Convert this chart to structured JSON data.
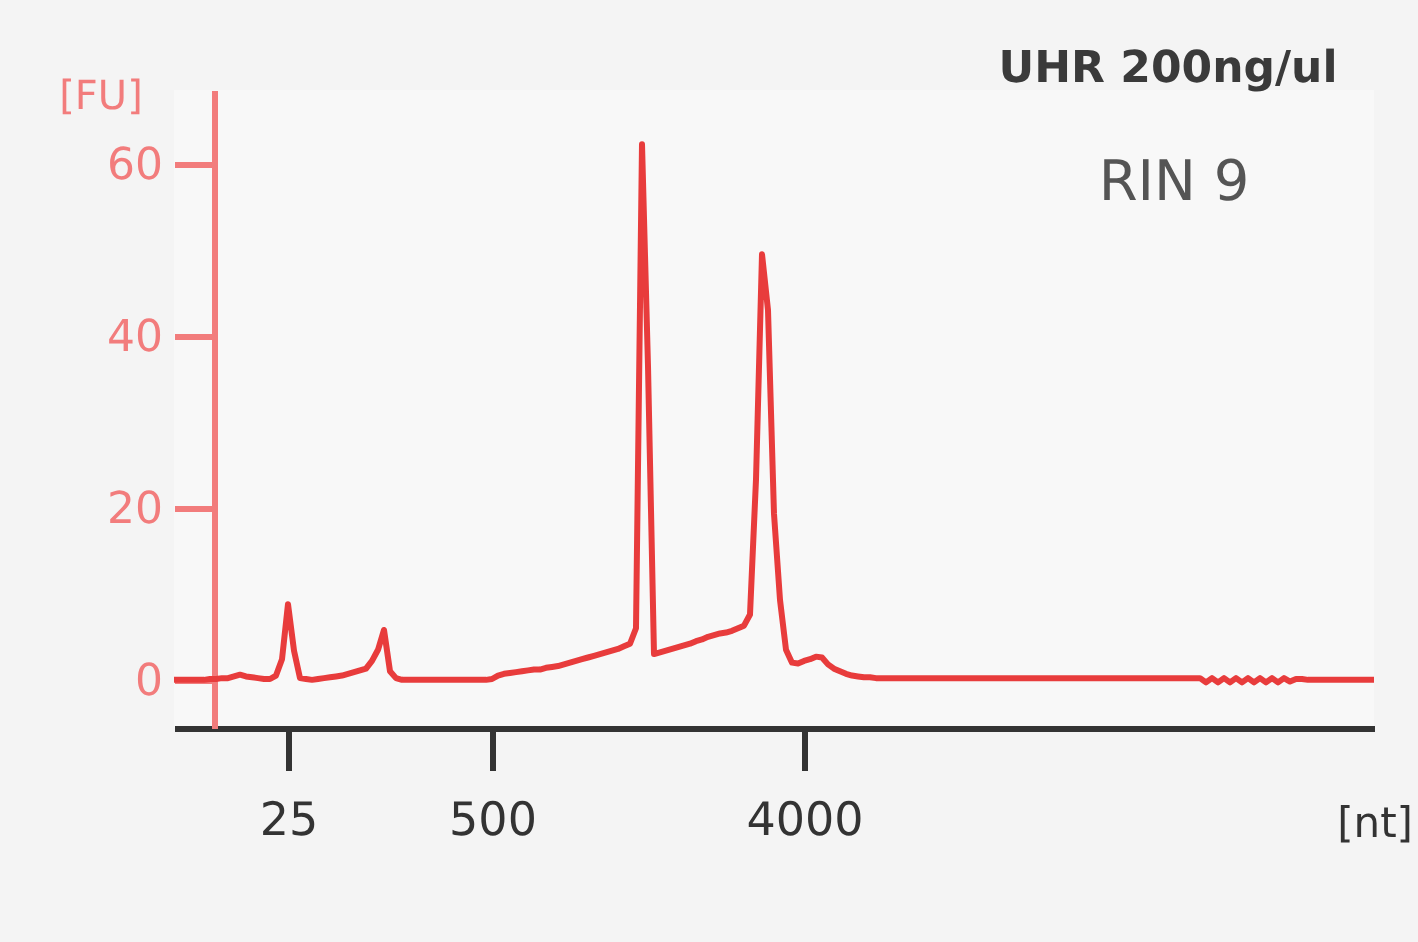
{
  "chart_data": {
    "type": "line",
    "xlabel": "[nt]",
    "ylabel": "[FU]",
    "annotations": [
      "UHR 200ng/ul",
      "RIN 9"
    ],
    "categories": [
      null,
      null,
      null,
      null,
      null,
      null,
      null,
      null,
      null,
      null,
      null,
      null,
      null,
      null,
      null,
      null,
      null,
      null,
      null,
      "25",
      null,
      null,
      null,
      null,
      null,
      null,
      null,
      null,
      null,
      null,
      null,
      null,
      null,
      null,
      null,
      null,
      null,
      null,
      null,
      null,
      null,
      null,
      null,
      null,
      null,
      null,
      null,
      null,
      null,
      null,
      null,
      null,
      null,
      "500",
      null,
      null,
      null,
      null,
      null,
      null,
      null,
      null,
      null,
      null,
      null,
      null,
      null,
      null,
      null,
      null,
      null,
      null,
      null,
      null,
      null,
      null,
      null,
      null,
      null,
      null,
      null,
      null,
      null,
      null,
      null,
      null,
      null,
      null,
      null,
      null,
      null,
      null,
      null,
      null,
      null,
      null,
      null,
      null,
      null,
      null,
      null,
      null,
      null,
      null,
      null,
      "4000",
      null,
      null,
      null,
      null,
      null,
      null,
      null,
      null,
      null,
      null,
      null,
      null,
      null,
      null,
      null,
      null,
      null,
      null,
      null,
      null,
      null,
      null,
      null,
      null,
      null,
      null,
      null,
      null,
      null,
      null,
      null,
      null,
      null,
      null,
      null,
      null,
      null,
      null,
      null,
      null,
      null,
      null,
      null,
      null,
      null,
      null,
      null,
      null,
      null,
      null,
      null,
      null,
      null,
      null,
      null,
      null,
      null,
      null,
      null,
      null,
      null,
      null,
      null,
      null,
      null,
      null,
      null,
      null,
      null,
      null,
      null,
      null,
      null,
      null,
      null,
      null,
      null,
      null,
      null,
      null,
      null,
      null,
      null,
      null,
      null,
      null,
      null,
      null,
      null,
      null,
      null,
      null,
      null,
      null,
      null
    ],
    "series": [
      {
        "color": "#e83c3c",
        "values": [
          0.0,
          0.0,
          0.0,
          0.0,
          0.0,
          0.0,
          0.1,
          0.1,
          0.2,
          0.2,
          0.4,
          0.6,
          0.4,
          0.3,
          0.2,
          0.1,
          0.1,
          0.5,
          2.4,
          8.8,
          3.4,
          0.2,
          0.1,
          0.0,
          0.1,
          0.2,
          0.3,
          0.4,
          0.5,
          0.7,
          0.9,
          1.1,
          1.3,
          2.2,
          3.5,
          5.8,
          1.0,
          0.2,
          0.0,
          0.0,
          0.0,
          0.0,
          0.0,
          0.0,
          0.0,
          0.0,
          0.0,
          0.0,
          0.0,
          0.0,
          0.0,
          0.0,
          0.0,
          0.1,
          0.5,
          0.7,
          0.8,
          0.9,
          1.0,
          1.1,
          1.2,
          1.2,
          1.4,
          1.5,
          1.6,
          1.8,
          2.0,
          2.2,
          2.4,
          2.6,
          2.8,
          3.0,
          3.2,
          3.4,
          3.6,
          3.9,
          4.2,
          6.0,
          62.3,
          36.5,
          3.0,
          3.2,
          3.4,
          3.6,
          3.8,
          4.0,
          4.2,
          4.5,
          4.7,
          5.0,
          5.2,
          5.4,
          5.5,
          5.7,
          6.0,
          6.3,
          7.6,
          23.3,
          49.5,
          43.0,
          19.3,
          9.3,
          3.5,
          2.0,
          1.9,
          2.2,
          2.4,
          2.7,
          2.6,
          1.8,
          1.3,
          1.0,
          0.7,
          0.5,
          0.4,
          0.3,
          0.3,
          0.2,
          0.2,
          0.2,
          0.2,
          0.2,
          0.2,
          0.2,
          0.2,
          0.2,
          0.2,
          0.2,
          0.2,
          0.2,
          0.2,
          0.2,
          0.2,
          0.2,
          0.2,
          0.2,
          0.2,
          0.2,
          0.2,
          0.2,
          0.2,
          0.2,
          0.2,
          0.2,
          0.2,
          0.2,
          0.2,
          0.2,
          0.2,
          0.2,
          0.2,
          0.2,
          0.2,
          0.2,
          0.2,
          0.2,
          0.2,
          0.2,
          0.2,
          0.2,
          0.2,
          0.2,
          0.2,
          0.2,
          0.2,
          0.2,
          0.2,
          0.2,
          0.2,
          0.2,
          0.2,
          0.2,
          -0.3,
          0.2,
          -0.3,
          0.2,
          -0.3,
          0.2,
          -0.3,
          0.2,
          -0.3,
          0.2,
          -0.3,
          0.2,
          -0.3,
          0.2,
          -0.2,
          0.1,
          0.1,
          0.0,
          0.0,
          0.0,
          0.0,
          0.0,
          0.0,
          0.0,
          0.0,
          0.0,
          0.0,
          0.0,
          0.0
        ]
      }
    ],
    "ylim": [
      -5.6,
      68.6
    ],
    "yticks": [
      0,
      20,
      40,
      60
    ],
    "line_style": "solid"
  }
}
